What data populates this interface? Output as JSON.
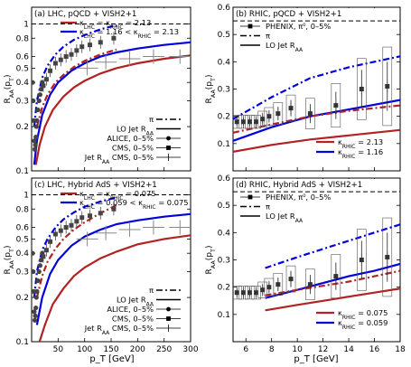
{
  "figure": {
    "xlabel": "p_T [GeV]",
    "panels_text": {
      "a": {
        "title": "(a) LHC, pQCD + VISH2+1",
        "legend_top": [
          "κ_LHC = κ_RHIC = 2.13",
          "κ_LHC = 1.16 < κ_RHIC = 2.13"
        ],
        "legend_bottom": [
          "π",
          "LO Jet R_AA",
          "ALICE, 0–5%",
          "CMS, 0–5%",
          "Jet R_AA  CMS, 0–5%"
        ]
      }
    }
  },
  "chart_data": [
    {
      "id": "a",
      "type": "line",
      "title": "(a) LHC, pQCD + VISH2+1",
      "xlabel": "",
      "ylabel": "R_AA(p_T)",
      "xlim": [
        0,
        300
      ],
      "ylim": [
        0.1,
        1.3
      ],
      "yscale": "log",
      "yticks": [
        0.1,
        0.2,
        0.3,
        0.4,
        0.5,
        0.6,
        0.8,
        1
      ],
      "ytick_labels": [
        "0.1",
        "0.2",
        "0.3",
        "0.4",
        "0.5",
        "0.6",
        "0.8",
        "1"
      ],
      "xticks": [
        50,
        100,
        150,
        200,
        250,
        300
      ],
      "xtick_labels": [
        "",
        "",
        "",
        "",
        "",
        ""
      ],
      "hline": 1,
      "legend": [
        {
          "label": "κ_LHC = κ_RHIC = 2.13",
          "color": "#b22222",
          "style": "solid"
        },
        {
          "label": "κ_LHC = 1.16 < κ_RHIC = 2.13",
          "color": "#0000dd",
          "style": "solid"
        },
        {
          "label": "π",
          "color": "#000000",
          "style": "dashdot"
        },
        {
          "label": "LO Jet R_AA",
          "color": "#000000",
          "style": "solid"
        },
        {
          "label": "ALICE, 0–5%",
          "color": "#000000",
          "style": "circle"
        },
        {
          "label": "CMS, 0–5%",
          "color": "#000000",
          "style": "square"
        },
        {
          "label": "Jet R_AA  CMS, 0–5%",
          "color": "#000000",
          "style": "cross"
        }
      ],
      "series": [
        {
          "name": "κ_LHC = κ_RHIC = 2.13",
          "color": "#b22222",
          "style": "solid",
          "x": [
            8,
            15,
            25,
            40,
            60,
            80,
            100,
            130,
            160,
            200,
            250,
            300
          ],
          "y": [
            0.11,
            0.15,
            0.2,
            0.26,
            0.32,
            0.37,
            0.41,
            0.46,
            0.5,
            0.54,
            0.58,
            0.61
          ]
        },
        {
          "name": "κ_LHC = 1.16 < κ_RHIC = 2.13",
          "color": "#0000dd",
          "style": "solid",
          "x": [
            5,
            10,
            20,
            35,
            50,
            75,
            100,
            130,
            160,
            200,
            250,
            300
          ],
          "y": [
            0.11,
            0.16,
            0.24,
            0.33,
            0.4,
            0.48,
            0.54,
            0.6,
            0.64,
            0.68,
            0.72,
            0.75
          ]
        },
        {
          "name": "",
          "color": "#b22222",
          "style": "dashdot",
          "x": [
            10,
            20,
            30,
            45,
            60,
            80,
            100,
            130,
            160
          ],
          "y": [
            0.2,
            0.27,
            0.33,
            0.4,
            0.45,
            0.51,
            0.56,
            0.62,
            0.67
          ]
        },
        {
          "name": "",
          "color": "#0000dd",
          "style": "dashdot",
          "x": [
            5,
            10,
            20,
            30,
            45,
            60,
            80,
            100,
            130,
            160
          ],
          "y": [
            0.2,
            0.3,
            0.43,
            0.52,
            0.62,
            0.7,
            0.78,
            0.84,
            0.92,
            0.98
          ]
        },
        {
          "name": "ALICE, 0–5%",
          "color": "#444444",
          "style": "circle",
          "x": [
            2,
            3,
            4,
            5,
            6,
            7,
            8,
            9,
            10,
            12,
            14,
            16,
            18,
            20
          ],
          "y": [
            0.4,
            0.3,
            0.22,
            0.16,
            0.14,
            0.15,
            0.17,
            0.2,
            0.22,
            0.26,
            0.3,
            0.33,
            0.36,
            0.4
          ]
        },
        {
          "name": "CMS, 0–5%",
          "color": "#444444",
          "style": "square",
          "x": [
            22,
            28,
            35,
            45,
            55,
            65,
            75,
            85,
            95,
            110,
            130,
            155
          ],
          "y": [
            0.38,
            0.42,
            0.48,
            0.54,
            0.57,
            0.6,
            0.62,
            0.66,
            0.7,
            0.72,
            0.75,
            0.8
          ]
        },
        {
          "name": "Jet R_AA  CMS, 0–5%",
          "color": "#444444",
          "style": "cross",
          "x": [
            105,
            140,
            185,
            230,
            280
          ],
          "y": [
            0.5,
            0.55,
            0.58,
            0.6,
            0.6
          ]
        }
      ]
    },
    {
      "id": "b",
      "type": "line",
      "title": "(b) RHIC, pQCD + VISH2+1",
      "xlabel": "",
      "ylabel": "R_AA(p_T)",
      "xlim": [
        5,
        18
      ],
      "ylim": [
        0,
        0.6
      ],
      "yscale": "linear",
      "yticks": [
        0,
        0.1,
        0.2,
        0.3,
        0.4,
        0.5,
        0.6
      ],
      "ytick_labels": [
        "",
        "0.1",
        "0.2",
        "0.3",
        "0.4",
        "0.5",
        "0.6"
      ],
      "xticks": [
        6,
        8,
        10,
        12,
        14,
        16,
        18
      ],
      "xtick_labels": [
        "",
        "",
        "",
        "",
        "",
        "",
        ""
      ],
      "hline": 0.55,
      "legend": [
        {
          "label": "PHENIX, π⁰, 0–5%",
          "color": "#000000",
          "style": "square"
        },
        {
          "label": "π",
          "color": "#000000",
          "style": "dashdot"
        },
        {
          "label": "LO Jet R_AA",
          "color": "#000000",
          "style": "solid"
        },
        {
          "label": "κ_RHIC = 2.13",
          "color": "#b22222",
          "style": "solid"
        },
        {
          "label": "κ_RHIC = 1.16",
          "color": "#0000dd",
          "style": "solid"
        }
      ],
      "series": [
        {
          "name": "κ_RHIC = 2.13",
          "color": "#b22222",
          "style": "solid",
          "x": [
            5,
            8,
            11,
            14,
            18
          ],
          "y": [
            0.07,
            0.095,
            0.115,
            0.13,
            0.15
          ]
        },
        {
          "name": "κ_RHIC = 1.16",
          "color": "#0000dd",
          "style": "solid",
          "x": [
            5,
            8,
            11,
            14,
            18
          ],
          "y": [
            0.11,
            0.16,
            0.2,
            0.225,
            0.26
          ]
        },
        {
          "name": "",
          "color": "#b22222",
          "style": "dashdot",
          "x": [
            5,
            8,
            11,
            14,
            18
          ],
          "y": [
            0.14,
            0.17,
            0.2,
            0.22,
            0.24
          ]
        },
        {
          "name": "",
          "color": "#0000dd",
          "style": "dashdot",
          "x": [
            5,
            8,
            11,
            14,
            18
          ],
          "y": [
            0.19,
            0.27,
            0.34,
            0.38,
            0.42
          ]
        },
        {
          "name": "PHENIX, π⁰, 0–5%",
          "color": "#333333",
          "style": "square",
          "x": [
            5.3,
            5.8,
            6.3,
            6.8,
            7.3,
            7.8,
            8.5,
            9.5,
            11,
            13,
            15,
            17
          ],
          "y": [
            0.18,
            0.18,
            0.18,
            0.18,
            0.19,
            0.2,
            0.21,
            0.23,
            0.21,
            0.24,
            0.3,
            0.31
          ],
          "yerr": [
            0.015,
            0.015,
            0.015,
            0.015,
            0.018,
            0.02,
            0.025,
            0.03,
            0.035,
            0.05,
            0.07,
            0.09
          ]
        }
      ]
    },
    {
      "id": "c",
      "type": "line",
      "title": "(c) LHC, Hybrid AdS + VISH2+1",
      "xlabel": "p_T [GeV]",
      "ylabel": "R_AA(p_T)",
      "xlim": [
        0,
        300
      ],
      "ylim": [
        0.1,
        1.3
      ],
      "yscale": "log",
      "yticks": [
        0.1,
        0.2,
        0.3,
        0.4,
        0.5,
        0.6,
        0.8,
        1
      ],
      "ytick_labels": [
        "0.1",
        "0.2",
        "0.3",
        "0.4",
        "0.5",
        "0.6",
        "0.8",
        "1"
      ],
      "xticks": [
        50,
        100,
        150,
        200,
        250,
        300
      ],
      "xtick_labels": [
        "50",
        "100",
        "150",
        "200",
        "250",
        "300"
      ],
      "hline": 1,
      "legend": [
        {
          "label": "κ_LHC = κ_RHIC = 0.075",
          "color": "#b22222",
          "style": "solid"
        },
        {
          "label": "κ_LHC = 0.059 < κ_RHIC = 0.075",
          "color": "#0000dd",
          "style": "solid"
        },
        {
          "label": "π",
          "color": "#000000",
          "style": "dashdot"
        },
        {
          "label": "LO Jet R_AA",
          "color": "#000000",
          "style": "solid"
        },
        {
          "label": "ALICE, 0–5%",
          "color": "#000000",
          "style": "circle"
        },
        {
          "label": "CMS, 0–5%",
          "color": "#000000",
          "style": "square"
        },
        {
          "label": "Jet R_AA  CMS, 0–5%",
          "color": "#000000",
          "style": "cross"
        }
      ],
      "series": [
        {
          "name": "κ_LHC = κ_RHIC = 0.075",
          "color": "#b22222",
          "style": "solid",
          "x": [
            15,
            25,
            40,
            60,
            80,
            100,
            130,
            160,
            200,
            250,
            300
          ],
          "y": [
            0.1,
            0.13,
            0.18,
            0.23,
            0.28,
            0.32,
            0.37,
            0.41,
            0.46,
            0.5,
            0.53
          ]
        },
        {
          "name": "κ_LHC = 0.059 < κ_RHIC = 0.075",
          "color": "#0000dd",
          "style": "solid",
          "x": [
            10,
            20,
            35,
            50,
            75,
            100,
            130,
            160,
            200,
            250,
            300
          ],
          "y": [
            0.13,
            0.2,
            0.29,
            0.36,
            0.45,
            0.52,
            0.58,
            0.63,
            0.67,
            0.71,
            0.74
          ]
        },
        {
          "name": "",
          "color": "#b22222",
          "style": "dashdot",
          "x": [
            10,
            20,
            30,
            45,
            60,
            80,
            100,
            130,
            160
          ],
          "y": [
            0.2,
            0.28,
            0.35,
            0.43,
            0.5,
            0.58,
            0.65,
            0.75,
            0.85
          ]
        },
        {
          "name": "",
          "color": "#0000dd",
          "style": "dashdot",
          "x": [
            5,
            10,
            20,
            30,
            45,
            60,
            80,
            100,
            130,
            160
          ],
          "y": [
            0.2,
            0.3,
            0.42,
            0.5,
            0.6,
            0.68,
            0.76,
            0.83,
            0.9,
            0.96
          ]
        },
        {
          "name": "ALICE, 0–5%",
          "color": "#444444",
          "style": "circle",
          "x": [
            2,
            3,
            4,
            5,
            6,
            7,
            8,
            9,
            10,
            12,
            14,
            16,
            18,
            20
          ],
          "y": [
            0.4,
            0.3,
            0.22,
            0.16,
            0.14,
            0.15,
            0.17,
            0.2,
            0.22,
            0.26,
            0.3,
            0.33,
            0.36,
            0.4
          ]
        },
        {
          "name": "CMS, 0–5%",
          "color": "#444444",
          "style": "square",
          "x": [
            22,
            28,
            35,
            45,
            55,
            65,
            75,
            85,
            95,
            110,
            130,
            155
          ],
          "y": [
            0.38,
            0.42,
            0.48,
            0.54,
            0.57,
            0.6,
            0.62,
            0.66,
            0.7,
            0.72,
            0.75,
            0.8
          ]
        },
        {
          "name": "Jet R_AA  CMS, 0–5%",
          "color": "#444444",
          "style": "cross",
          "x": [
            105,
            140,
            185,
            230,
            280
          ],
          "y": [
            0.5,
            0.55,
            0.58,
            0.6,
            0.6
          ]
        }
      ]
    },
    {
      "id": "d",
      "type": "line",
      "title": "(d) RHIC, Hybrid AdS + VISH2+1",
      "xlabel": "p_T [GeV]",
      "ylabel": "R_AA(p_T)",
      "xlim": [
        5,
        18
      ],
      "ylim": [
        0,
        0.6
      ],
      "yscale": "linear",
      "yticks": [
        0,
        0.1,
        0.2,
        0.3,
        0.4,
        0.5,
        0.6
      ],
      "ytick_labels": [
        "",
        "0.1",
        "0.2",
        "0.3",
        "0.4",
        "0.5",
        "0.6"
      ],
      "xticks": [
        6,
        8,
        10,
        12,
        14,
        16,
        18
      ],
      "xtick_labels": [
        "6",
        "8",
        "10",
        "12",
        "14",
        "16",
        "18"
      ],
      "hline": 0.55,
      "legend": [
        {
          "label": "PHENIX, π⁰, 0–5%",
          "color": "#000000",
          "style": "square"
        },
        {
          "label": "π",
          "color": "#000000",
          "style": "dashdot"
        },
        {
          "label": "LO Jet R_AA",
          "color": "#000000",
          "style": "solid"
        },
        {
          "label": "κ_RHIC = 0.075",
          "color": "#b22222",
          "style": "solid"
        },
        {
          "label": "κ_RHIC = 0.059",
          "color": "#0000dd",
          "style": "solid"
        }
      ],
      "series": [
        {
          "name": "κ_RHIC = 0.075",
          "color": "#b22222",
          "style": "solid",
          "x": [
            7.5,
            10,
            12,
            14,
            16,
            18
          ],
          "y": [
            0.115,
            0.135,
            0.15,
            0.165,
            0.18,
            0.195
          ]
        },
        {
          "name": "κ_RHIC = 0.059",
          "color": "#0000dd",
          "style": "solid",
          "x": [
            7.5,
            10,
            12,
            14,
            16,
            18
          ],
          "y": [
            0.16,
            0.19,
            0.215,
            0.24,
            0.26,
            0.285
          ]
        },
        {
          "name": "",
          "color": "#b22222",
          "style": "dashdot",
          "x": [
            7.5,
            10,
            12,
            14,
            16,
            18
          ],
          "y": [
            0.17,
            0.19,
            0.205,
            0.22,
            0.24,
            0.26
          ]
        },
        {
          "name": "",
          "color": "#0000dd",
          "style": "dashdot",
          "x": [
            7.5,
            10,
            12,
            14,
            16,
            18
          ],
          "y": [
            0.27,
            0.31,
            0.34,
            0.37,
            0.4,
            0.43
          ]
        },
        {
          "name": "PHENIX, π⁰, 0–5%",
          "color": "#333333",
          "style": "square",
          "x": [
            5.3,
            5.8,
            6.3,
            6.8,
            7.3,
            7.8,
            8.5,
            9.5,
            11,
            13,
            15,
            17
          ],
          "y": [
            0.18,
            0.18,
            0.18,
            0.18,
            0.19,
            0.2,
            0.21,
            0.23,
            0.21,
            0.24,
            0.3,
            0.31
          ],
          "yerr": [
            0.015,
            0.015,
            0.015,
            0.015,
            0.018,
            0.02,
            0.025,
            0.03,
            0.035,
            0.05,
            0.07,
            0.09
          ]
        }
      ]
    }
  ]
}
